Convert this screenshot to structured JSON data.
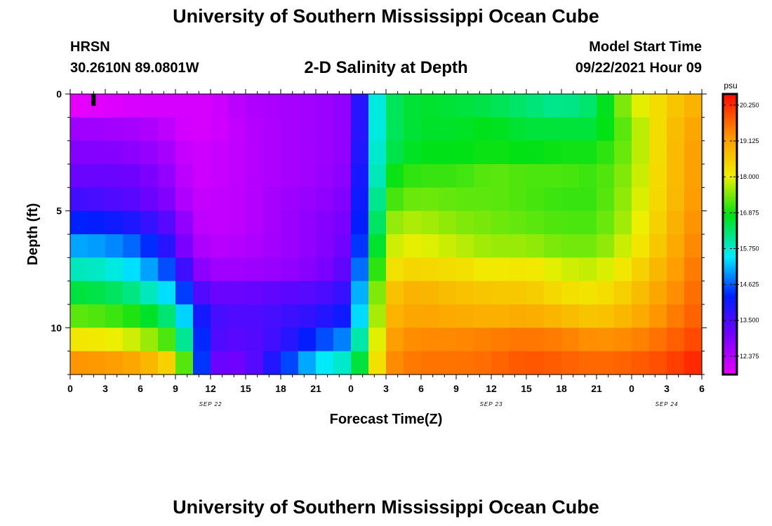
{
  "header": {
    "title": "University of Southern Mississippi Ocean Cube",
    "station": "HRSN",
    "coords": "30.2610N  89.0801W",
    "chart_title": "2-D Salinity at Depth",
    "model_start_label": "Model Start Time",
    "model_start_value": "09/22/2021 Hour 09"
  },
  "footer": {
    "title": "University of Southern Mississippi Ocean Cube"
  },
  "chart_data": {
    "type": "heatmap",
    "title": "2-D Salinity at Depth",
    "xlabel": "Forecast Time(Z)",
    "ylabel": "Depth (ft)",
    "x_range_hours": [
      0,
      54
    ],
    "y_range_ft": [
      0,
      12
    ],
    "x_tick_labels": [
      "0",
      "3",
      "6",
      "9",
      "12",
      "15",
      "18",
      "21",
      "0",
      "3",
      "6",
      "9",
      "12",
      "15",
      "18",
      "21",
      "0",
      "3",
      "6"
    ],
    "date_labels": [
      {
        "text": "SEP 22",
        "hour": 12
      },
      {
        "text": "SEP 23",
        "hour": 36
      },
      {
        "text": "SEP 24",
        "hour": 51
      }
    ],
    "y_tick_labels": [
      {
        "value": 0,
        "text": "0"
      },
      {
        "value": 5,
        "text": "5"
      },
      {
        "value": 10,
        "text": "10"
      }
    ],
    "colorbar": {
      "unit": "psu",
      "min": 11.8,
      "max": 20.6,
      "tick_labels": [
        "20.250",
        "19.125",
        "18.000",
        "16.875",
        "15.750",
        "14.625",
        "13.500",
        "12.375"
      ],
      "tick_values": [
        20.25,
        19.125,
        18.0,
        16.875,
        15.75,
        14.625,
        13.5,
        12.375
      ]
    },
    "marker": {
      "hour": 2,
      "depth_ft": 0
    },
    "depth_levels_ft": [
      0.5,
      1.5,
      2.5,
      3.5,
      4.5,
      5.5,
      6.5,
      7.5,
      8.5,
      9.5,
      10.5,
      11.5
    ],
    "profile_times_hours": [
      0,
      3,
      6,
      9,
      10,
      11,
      12,
      15,
      18,
      21,
      24,
      25,
      26,
      27,
      28,
      30,
      33,
      36,
      39,
      42,
      45,
      48,
      51,
      54
    ],
    "salinity_psu": [
      [
        11.8,
        11.9,
        12.0,
        12.0,
        12.0,
        12.0,
        12.0,
        12.4,
        12.5,
        12.6,
        12.8,
        14.2,
        15.5,
        16.2,
        16.5,
        16.7,
        16.6,
        16.5,
        16.3,
        16.1,
        16.4,
        17.8,
        18.5,
        19.0
      ],
      [
        12.6,
        12.6,
        12.5,
        12.2,
        12.0,
        12.0,
        12.0,
        12.3,
        12.5,
        12.6,
        12.8,
        14.2,
        15.5,
        16.2,
        16.5,
        16.7,
        16.7,
        16.8,
        16.6,
        16.6,
        16.6,
        17.5,
        18.6,
        19.2
      ],
      [
        12.9,
        12.9,
        12.8,
        12.4,
        12.1,
        12.1,
        12.1,
        12.3,
        12.5,
        12.6,
        12.8,
        14.3,
        15.6,
        16.3,
        16.6,
        16.8,
        16.8,
        16.9,
        16.8,
        16.9,
        16.9,
        17.5,
        18.6,
        19.3
      ],
      [
        13.2,
        13.2,
        13.1,
        12.6,
        12.2,
        12.1,
        12.1,
        12.3,
        12.5,
        12.6,
        12.9,
        14.4,
        15.7,
        16.5,
        17.0,
        17.1,
        17.1,
        17.3,
        17.2,
        17.2,
        17.1,
        17.6,
        18.6,
        19.3
      ],
      [
        13.6,
        13.5,
        13.3,
        12.8,
        12.3,
        12.2,
        12.2,
        12.3,
        12.6,
        12.7,
        13.0,
        14.5,
        15.9,
        16.8,
        17.3,
        17.4,
        17.3,
        17.3,
        17.2,
        17.1,
        17.1,
        17.7,
        18.6,
        19.4
      ],
      [
        14.3,
        14.2,
        13.9,
        13.2,
        12.6,
        12.3,
        12.2,
        12.3,
        12.6,
        12.8,
        13.1,
        14.6,
        16.1,
        17.2,
        17.7,
        17.7,
        17.5,
        17.4,
        17.3,
        17.2,
        17.2,
        17.8,
        18.7,
        19.5
      ],
      [
        15.1,
        15.0,
        14.6,
        13.6,
        12.8,
        12.5,
        12.3,
        12.4,
        12.6,
        12.8,
        13.2,
        14.8,
        16.4,
        17.5,
        18.0,
        18.0,
        17.8,
        17.6,
        17.6,
        17.4,
        17.4,
        18.0,
        18.8,
        19.6
      ],
      [
        15.9,
        15.8,
        15.3,
        14.3,
        13.4,
        12.9,
        12.6,
        12.6,
        12.7,
        12.9,
        13.4,
        15.2,
        16.8,
        17.8,
        18.4,
        18.4,
        18.3,
        18.1,
        18.2,
        17.9,
        17.8,
        18.3,
        19.0,
        19.7
      ],
      [
        16.6,
        16.5,
        16.1,
        15.2,
        14.2,
        13.5,
        13.2,
        13.2,
        13.3,
        13.4,
        13.8,
        15.6,
        17.2,
        18.3,
        18.8,
        18.9,
        18.7,
        18.6,
        18.6,
        18.3,
        18.2,
        18.6,
        19.2,
        19.8
      ],
      [
        17.3,
        17.2,
        16.9,
        16.1,
        15.1,
        14.2,
        13.6,
        13.4,
        13.6,
        13.8,
        14.2,
        15.8,
        17.4,
        18.5,
        19.0,
        19.1,
        19.0,
        18.9,
        19.0,
        18.8,
        18.6,
        18.9,
        19.4,
        19.9
      ],
      [
        18.2,
        18.1,
        17.8,
        17.0,
        15.8,
        14.6,
        13.5,
        13.3,
        13.7,
        14.4,
        15.0,
        16.3,
        17.7,
        18.8,
        19.3,
        19.4,
        19.4,
        19.5,
        19.6,
        19.5,
        19.3,
        19.4,
        19.7,
        20.1
      ],
      [
        19.3,
        19.2,
        19.0,
        18.3,
        16.9,
        14.8,
        13.2,
        13.1,
        14.2,
        15.4,
        15.9,
        16.8,
        18.0,
        19.0,
        19.5,
        19.6,
        19.6,
        19.7,
        19.9,
        19.8,
        19.7,
        19.8,
        20.0,
        20.4
      ]
    ]
  }
}
